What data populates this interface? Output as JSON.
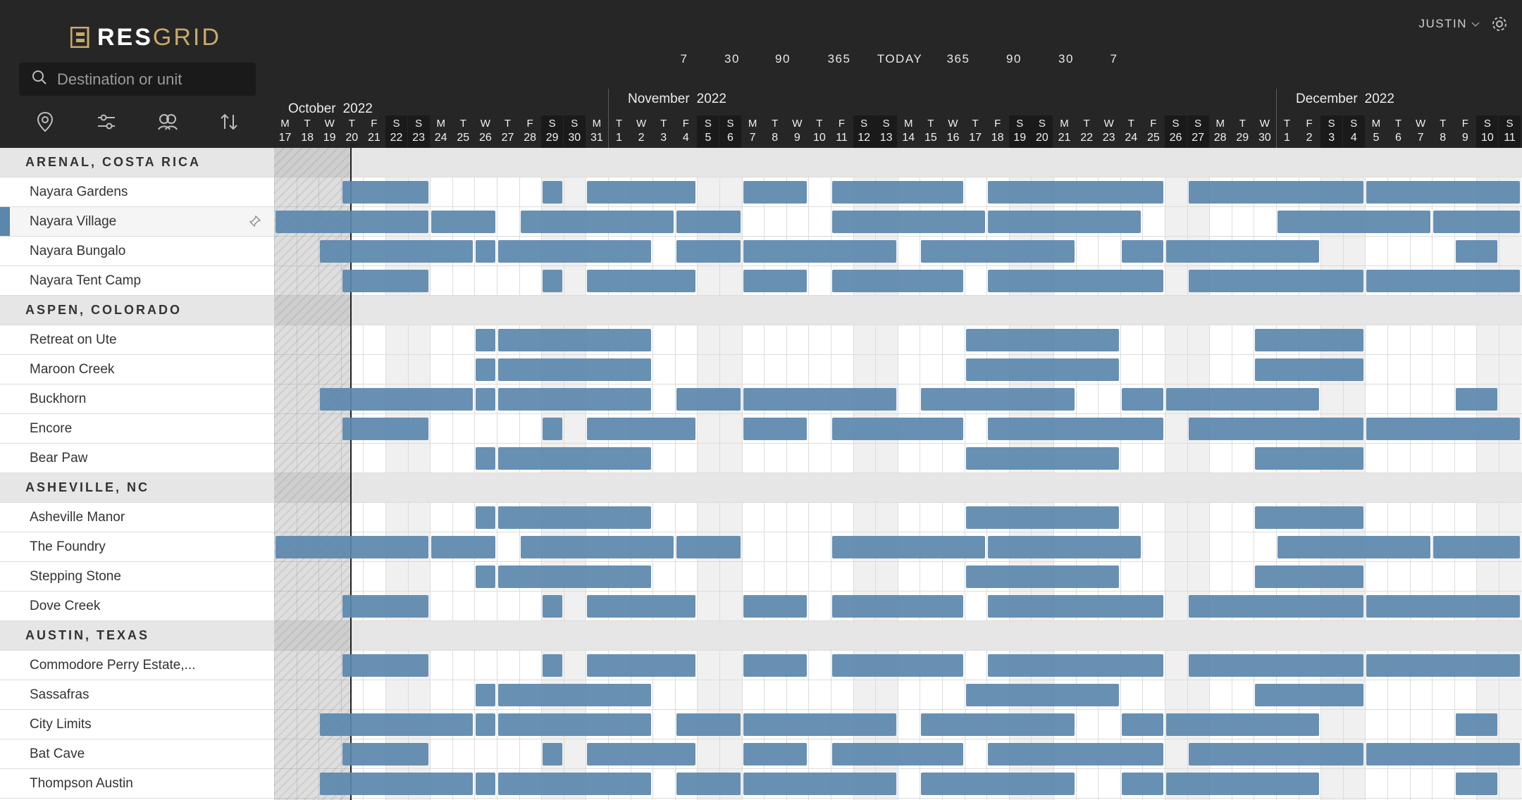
{
  "app": {
    "logo_text": "RESGRID",
    "logo_bold": "RES",
    "logo_light": "GRID"
  },
  "search": {
    "placeholder": "Destination or unit",
    "value": ""
  },
  "toolbar": {
    "icons": [
      "location-pin-icon",
      "sliders-icon",
      "group-icon",
      "sort-icon"
    ]
  },
  "user": {
    "name": "JUSTIN"
  },
  "zoom": {
    "labels": [
      "7",
      "30",
      "90",
      "365",
      "TODAY",
      "365",
      "90",
      "30",
      "7"
    ]
  },
  "months": [
    {
      "name": "October",
      "year": "2022"
    },
    {
      "name": "November",
      "year": "2022"
    },
    {
      "name": "December",
      "year": "2022"
    }
  ],
  "days": [
    {
      "l": "M",
      "n": "17"
    },
    {
      "l": "T",
      "n": "18"
    },
    {
      "l": "W",
      "n": "19"
    },
    {
      "l": "T",
      "n": "20"
    },
    {
      "l": "F",
      "n": "21"
    },
    {
      "l": "S",
      "n": "22"
    },
    {
      "l": "S",
      "n": "23"
    },
    {
      "l": "M",
      "n": "24"
    },
    {
      "l": "T",
      "n": "25"
    },
    {
      "l": "W",
      "n": "26"
    },
    {
      "l": "T",
      "n": "27"
    },
    {
      "l": "F",
      "n": "28"
    },
    {
      "l": "S",
      "n": "29"
    },
    {
      "l": "S",
      "n": "30"
    },
    {
      "l": "M",
      "n": "31"
    },
    {
      "l": "T",
      "n": "1"
    },
    {
      "l": "W",
      "n": "2"
    },
    {
      "l": "T",
      "n": "3"
    },
    {
      "l": "F",
      "n": "4"
    },
    {
      "l": "S",
      "n": "5"
    },
    {
      "l": "S",
      "n": "6"
    },
    {
      "l": "M",
      "n": "7"
    },
    {
      "l": "T",
      "n": "8"
    },
    {
      "l": "W",
      "n": "9"
    },
    {
      "l": "T",
      "n": "10"
    },
    {
      "l": "F",
      "n": "11"
    },
    {
      "l": "S",
      "n": "12"
    },
    {
      "l": "S",
      "n": "13"
    },
    {
      "l": "M",
      "n": "14"
    },
    {
      "l": "T",
      "n": "15"
    },
    {
      "l": "W",
      "n": "16"
    },
    {
      "l": "T",
      "n": "17"
    },
    {
      "l": "F",
      "n": "18"
    },
    {
      "l": "S",
      "n": "19"
    },
    {
      "l": "S",
      "n": "20"
    },
    {
      "l": "M",
      "n": "21"
    },
    {
      "l": "T",
      "n": "22"
    },
    {
      "l": "W",
      "n": "23"
    },
    {
      "l": "T",
      "n": "24"
    },
    {
      "l": "F",
      "n": "25"
    },
    {
      "l": "S",
      "n": "26"
    },
    {
      "l": "S",
      "n": "27"
    },
    {
      "l": "M",
      "n": "28"
    },
    {
      "l": "T",
      "n": "29"
    },
    {
      "l": "W",
      "n": "30"
    },
    {
      "l": "T",
      "n": "1"
    },
    {
      "l": "F",
      "n": "2"
    },
    {
      "l": "S",
      "n": "3"
    },
    {
      "l": "S",
      "n": "4"
    },
    {
      "l": "M",
      "n": "5"
    },
    {
      "l": "T",
      "n": "6"
    },
    {
      "l": "W",
      "n": "7"
    },
    {
      "l": "T",
      "n": "8"
    },
    {
      "l": "F",
      "n": "9"
    },
    {
      "l": "S",
      "n": "10"
    },
    {
      "l": "S",
      "n": "11"
    }
  ],
  "rows": [
    {
      "type": "group",
      "label": "ARENAL, COSTA RICA"
    },
    {
      "type": "unit",
      "label": "Nayara Gardens",
      "pattern": "A"
    },
    {
      "type": "unit",
      "label": "Nayara Village",
      "pattern": "B",
      "selected": true
    },
    {
      "type": "unit",
      "label": "Nayara Bungalo",
      "pattern": "C"
    },
    {
      "type": "unit",
      "label": "Nayara Tent Camp",
      "pattern": "A"
    },
    {
      "type": "group",
      "label": "ASPEN, COLORADO"
    },
    {
      "type": "unit",
      "label": "Retreat on Ute",
      "pattern": "D"
    },
    {
      "type": "unit",
      "label": "Maroon Creek",
      "pattern": "D"
    },
    {
      "type": "unit",
      "label": "Buckhorn",
      "pattern": "C"
    },
    {
      "type": "unit",
      "label": "Encore",
      "pattern": "A"
    },
    {
      "type": "unit",
      "label": "Bear Paw",
      "pattern": "D"
    },
    {
      "type": "group",
      "label": "ASHEVILLE, NC"
    },
    {
      "type": "unit",
      "label": "Asheville Manor",
      "pattern": "D"
    },
    {
      "type": "unit",
      "label": "The Foundry",
      "pattern": "B"
    },
    {
      "type": "unit",
      "label": "Stepping Stone",
      "pattern": "D"
    },
    {
      "type": "unit",
      "label": "Dove Creek",
      "pattern": "A"
    },
    {
      "type": "group",
      "label": "AUSTIN, TEXAS"
    },
    {
      "type": "unit",
      "label": "Commodore Perry Estate,...",
      "pattern": "A"
    },
    {
      "type": "unit",
      "label": "Sassafras",
      "pattern": "D"
    },
    {
      "type": "unit",
      "label": "City Limits",
      "pattern": "C"
    },
    {
      "type": "unit",
      "label": "Bat Cave",
      "pattern": "A"
    },
    {
      "type": "unit",
      "label": "Thompson Austin",
      "pattern": "C"
    }
  ],
  "patterns": {
    "A": [
      [
        3,
        6
      ],
      [
        12,
        12
      ],
      [
        14,
        18
      ],
      [
        21,
        23
      ],
      [
        25,
        30
      ],
      [
        32,
        39
      ],
      [
        41,
        48
      ],
      [
        49,
        55
      ]
    ],
    "B": [
      [
        0,
        6
      ],
      [
        7,
        9
      ],
      [
        11,
        17
      ],
      [
        18,
        20
      ],
      [
        25,
        31
      ],
      [
        32,
        38
      ],
      [
        45,
        51
      ],
      [
        52,
        55
      ]
    ],
    "C": [
      [
        2,
        8
      ],
      [
        9,
        9
      ],
      [
        10,
        16
      ],
      [
        18,
        20
      ],
      [
        21,
        27
      ],
      [
        29,
        35
      ],
      [
        38,
        39
      ],
      [
        40,
        46
      ],
      [
        53,
        54
      ]
    ],
    "D": [
      [
        9,
        9
      ],
      [
        10,
        16
      ],
      [
        31,
        37
      ],
      [
        44,
        48
      ]
    ]
  },
  "colors": {
    "bar": "#5b87ad",
    "dark": "#262626",
    "gold": "#c9a968"
  }
}
